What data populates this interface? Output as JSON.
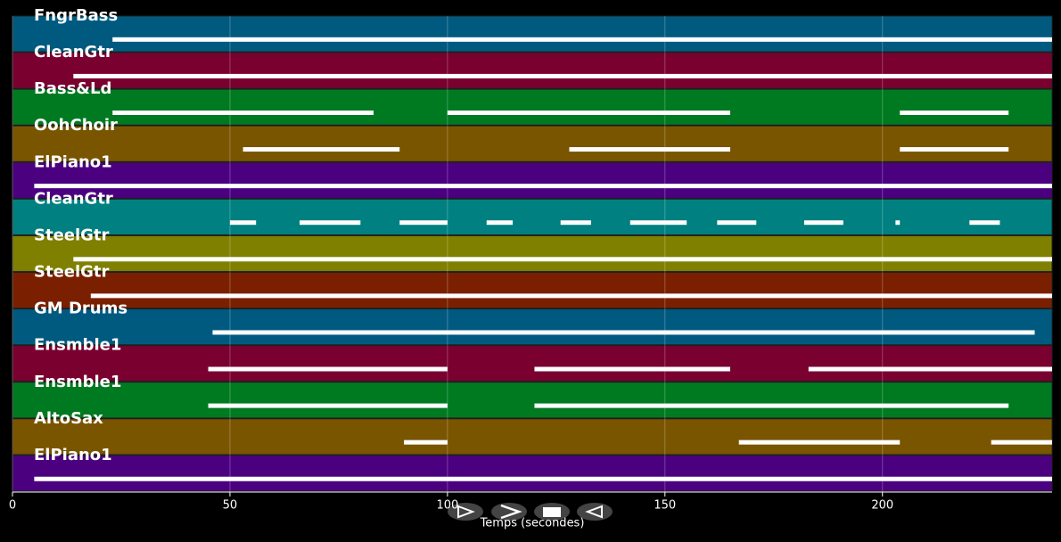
{
  "chart_data": {
    "type": "pianoroll",
    "xlabel": "Temps (secondes)",
    "xlim": [
      0,
      239
    ],
    "xticks": [
      0,
      50,
      100,
      150,
      200
    ],
    "grid": true,
    "series": [
      {
        "name": "FngrBass",
        "color": "#005a80",
        "segments": [
          [
            23,
            239
          ]
        ]
      },
      {
        "name": "CleanGtr",
        "color": "#7a0030",
        "segments": [
          [
            14,
            239
          ]
        ]
      },
      {
        "name": "Bass&Ld",
        "color": "#007a20",
        "segments": [
          [
            23,
            83
          ],
          [
            100,
            165
          ],
          [
            204,
            229
          ]
        ]
      },
      {
        "name": "OohChoir",
        "color": "#7a5500",
        "segments": [
          [
            53,
            89
          ],
          [
            128,
            165
          ],
          [
            204,
            229
          ]
        ]
      },
      {
        "name": "ElPiano1",
        "color": "#4b0080",
        "segments": [
          [
            5,
            239
          ]
        ]
      },
      {
        "name": "CleanGtr",
        "color": "#008080",
        "segments": [
          [
            50,
            56
          ],
          [
            66,
            80
          ],
          [
            89,
            100
          ],
          [
            109,
            115
          ],
          [
            126,
            133
          ],
          [
            142,
            155
          ],
          [
            162,
            171
          ],
          [
            182,
            191
          ],
          [
            203,
            204
          ],
          [
            220,
            227
          ]
        ]
      },
      {
        "name": "SteelGtr",
        "color": "#808000",
        "segments": [
          [
            14,
            239
          ]
        ]
      },
      {
        "name": "SteelGtr",
        "color": "#7a2000",
        "segments": [
          [
            18,
            239
          ]
        ]
      },
      {
        "name": "GM Drums",
        "color": "#005a80",
        "segments": [
          [
            46,
            235
          ]
        ]
      },
      {
        "name": "Ensmble1",
        "color": "#7a0030",
        "segments": [
          [
            45,
            100
          ],
          [
            120,
            165
          ],
          [
            183,
            239
          ]
        ]
      },
      {
        "name": "Ensmble1",
        "color": "#007a20",
        "segments": [
          [
            45,
            100
          ],
          [
            120,
            229
          ]
        ]
      },
      {
        "name": "AltoSax",
        "color": "#7a5500",
        "segments": [
          [
            90,
            100
          ],
          [
            167,
            204
          ],
          [
            225,
            239
          ]
        ]
      },
      {
        "name": "ElPiano1",
        "color": "#4b0080",
        "segments": [
          [
            5,
            239
          ]
        ]
      }
    ]
  }
}
